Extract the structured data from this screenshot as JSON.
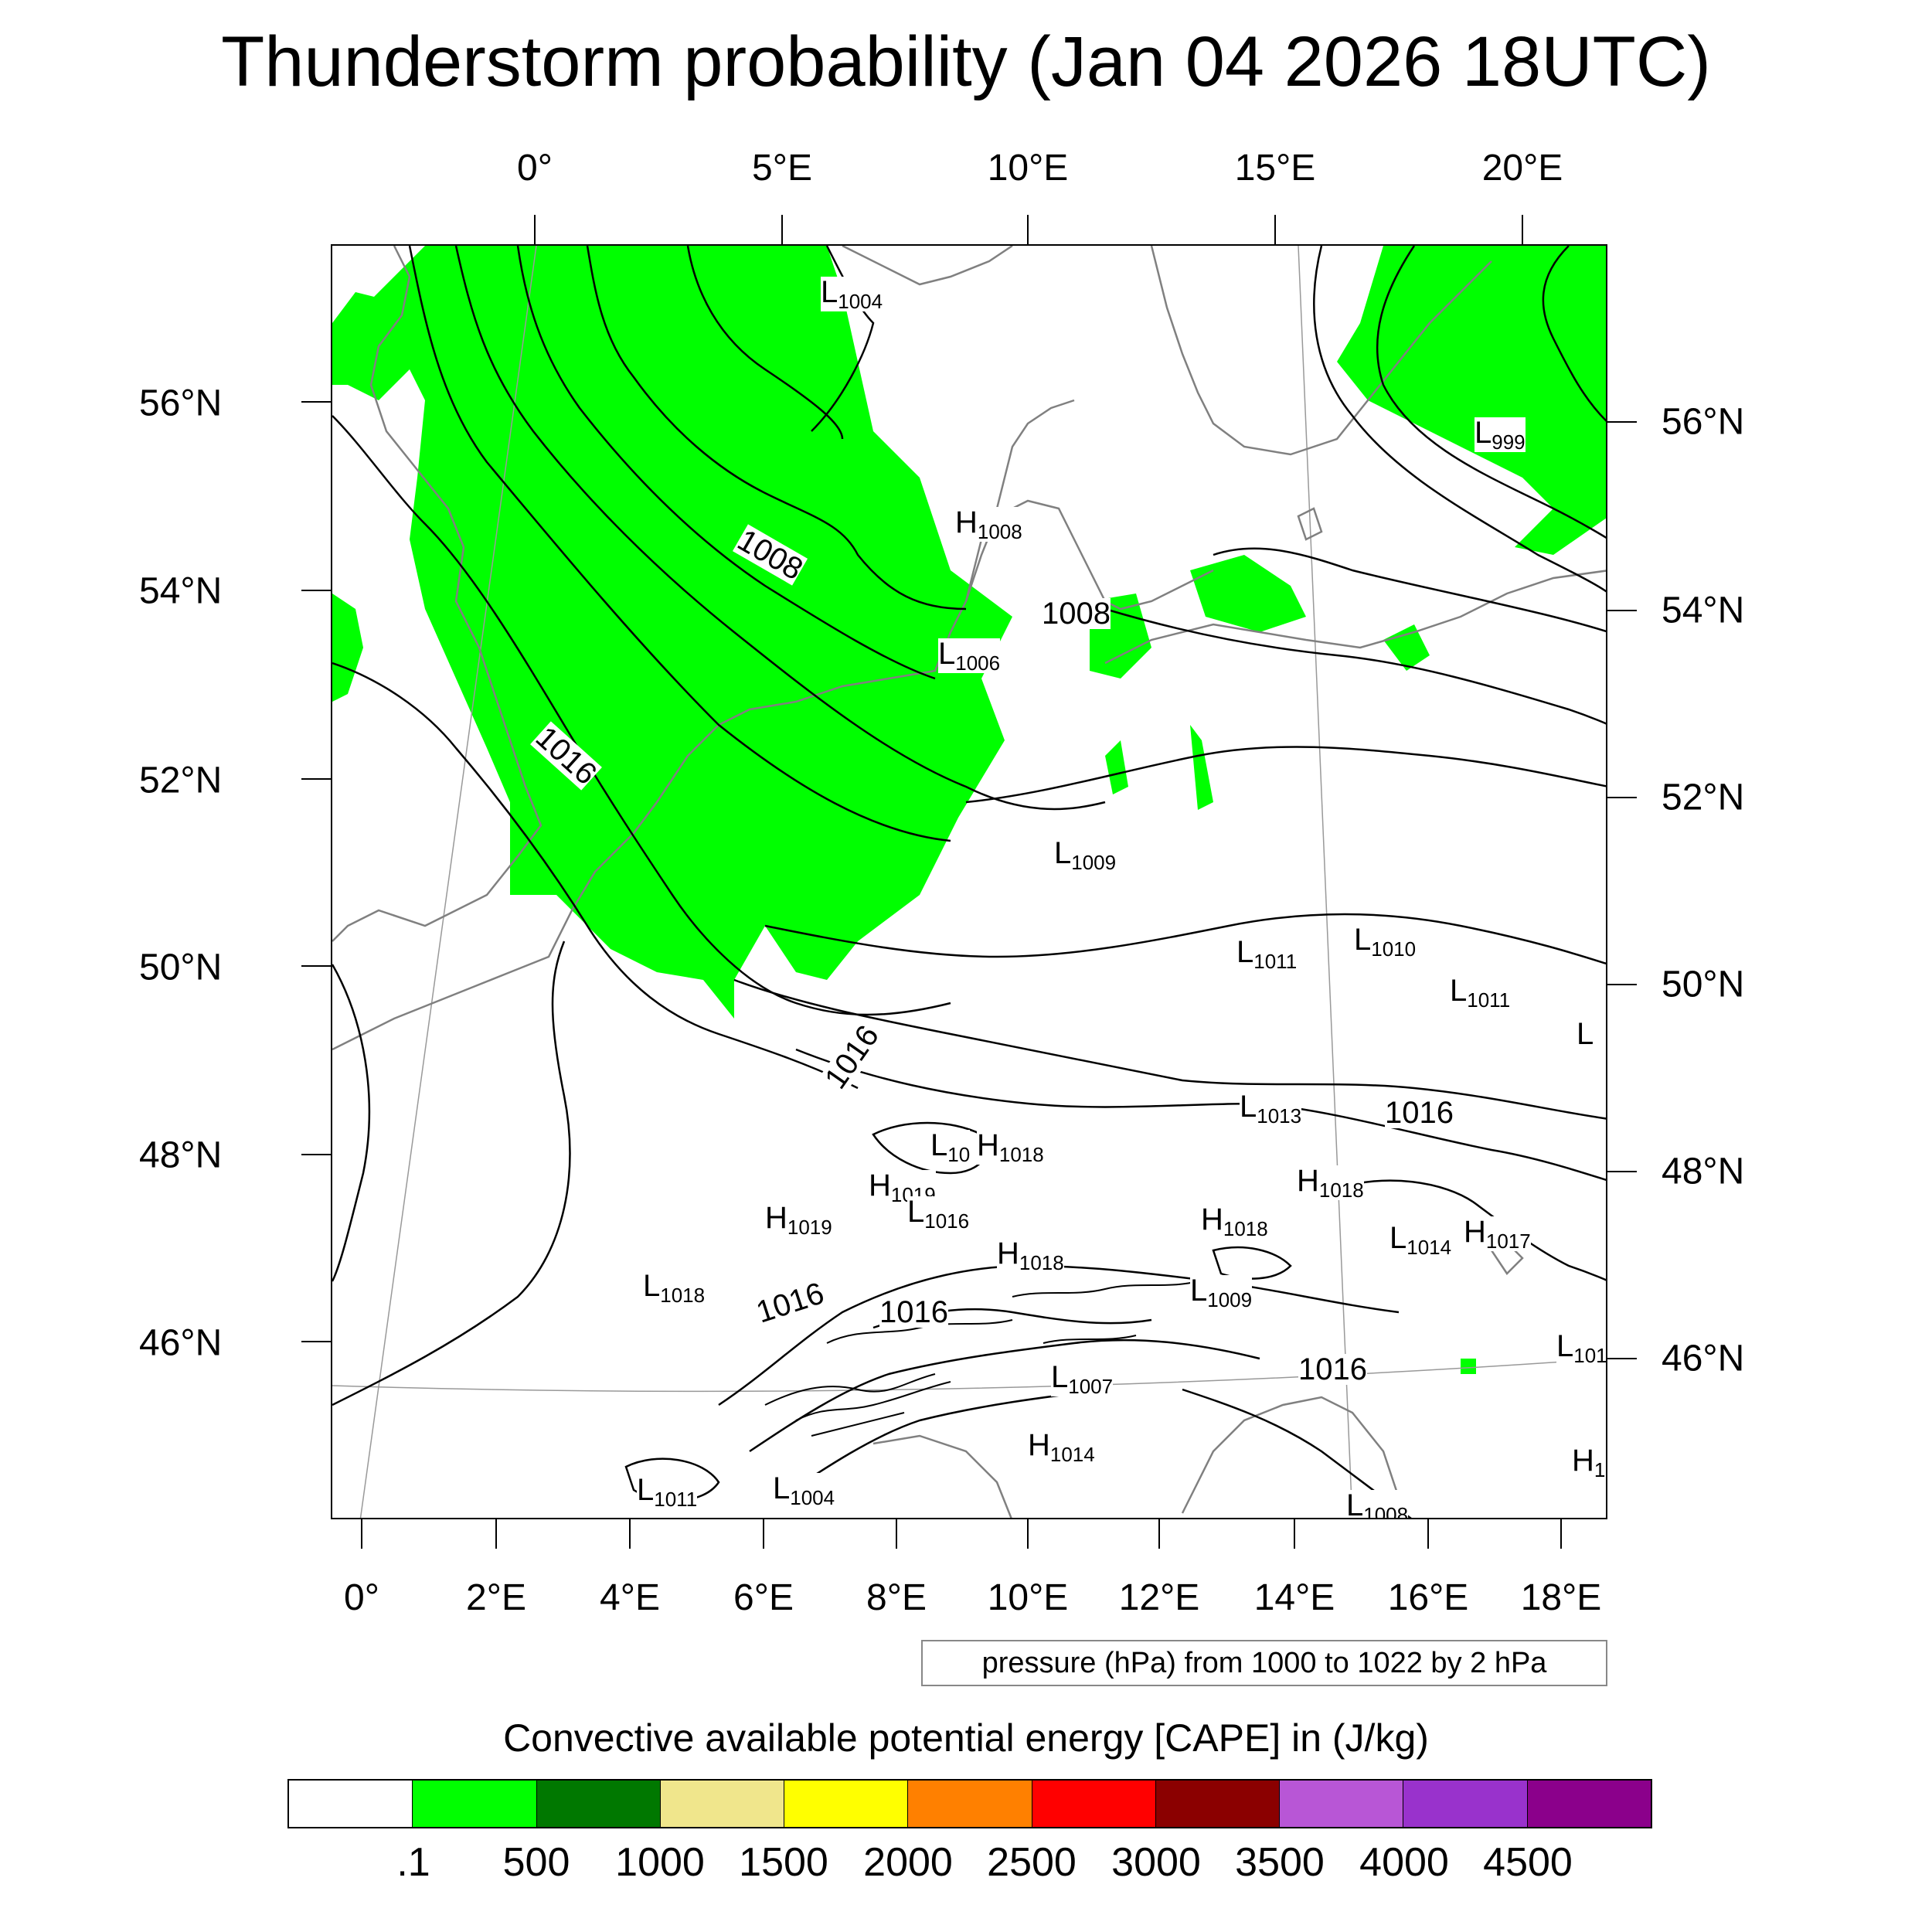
{
  "title": "Thunderstorm probability (Jan 04 2026 18UTC)",
  "top_lon_labels": [
    "0°",
    "5°E",
    "10°E",
    "15°E",
    "20°E"
  ],
  "bottom_lon_labels": [
    "0°",
    "2°E",
    "4°E",
    "6°E",
    "8°E",
    "10°E",
    "12°E",
    "14°E",
    "16°E",
    "18°E"
  ],
  "left_lat_labels": [
    "56°N",
    "54°N",
    "52°N",
    "50°N",
    "48°N",
    "46°N"
  ],
  "right_lat_labels": [
    "56°N",
    "54°N",
    "52°N",
    "50°N",
    "48°N",
    "46°N"
  ],
  "pressure_centers": [
    {
      "letter": "L",
      "value": "1004"
    },
    {
      "letter": "L",
      "value": "999"
    },
    {
      "letter": "H",
      "value": "1008"
    },
    {
      "letter": "L",
      "value": "1006"
    },
    {
      "letter": "L",
      "value": "1009"
    },
    {
      "letter": "L",
      "value": "1011"
    },
    {
      "letter": "L",
      "value": "1010"
    },
    {
      "letter": "L",
      "value": "1011"
    },
    {
      "letter": "L",
      "value": "1013"
    },
    {
      "letter": "L",
      "value": "10"
    },
    {
      "letter": "H",
      "value": "1018"
    },
    {
      "letter": "H",
      "value": "1019"
    },
    {
      "letter": "H",
      "value": "1019"
    },
    {
      "letter": "L",
      "value": "1016"
    },
    {
      "letter": "H",
      "value": "1018"
    },
    {
      "letter": "H",
      "value": "1018"
    },
    {
      "letter": "H",
      "value": "1018"
    },
    {
      "letter": "L",
      "value": "1014"
    },
    {
      "letter": "H",
      "value": "1017"
    },
    {
      "letter": "L",
      "value": "1018"
    },
    {
      "letter": "L",
      "value": "1009"
    },
    {
      "letter": "L",
      "value": "1007"
    },
    {
      "letter": "H",
      "value": "1014"
    },
    {
      "letter": "L",
      "value": "1011"
    },
    {
      "letter": "L",
      "value": "1004"
    },
    {
      "letter": "L",
      "value": "1008"
    },
    {
      "letter": "L",
      "value": "101"
    },
    {
      "letter": "H",
      "value": "1"
    },
    {
      "letter": "L",
      "value": ""
    }
  ],
  "contour_labels": [
    "1008",
    "1008",
    "1016",
    "1016",
    "1016",
    "1016",
    "1016",
    "1016"
  ],
  "pressure_note": "pressure (hPa) from 1000 to 1022 by 2 hPa",
  "legend": {
    "title": "Convective available potential energy [CAPE] in (J/kg)",
    "colors": [
      "#ffffff",
      "#00ff00",
      "#007800",
      "#f0e68c",
      "#ffff00",
      "#ff8000",
      "#ff0000",
      "#8b0000",
      "#b856d6",
      "#9932cc",
      "#8b008b"
    ],
    "labels": [
      ".1",
      "500",
      "1000",
      "1500",
      "2000",
      "2500",
      "3000",
      "3500",
      "4000",
      "4500"
    ]
  }
}
